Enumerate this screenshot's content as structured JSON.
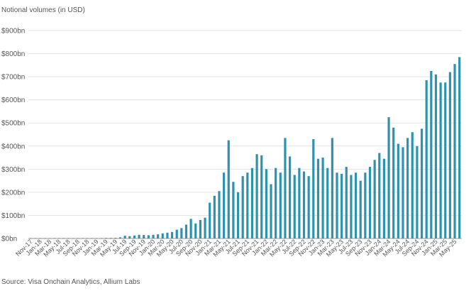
{
  "chart_data": {
    "type": "bar",
    "title": "",
    "ylabel": "Notional volumes (in USD)",
    "xlabel": "",
    "source": "Source: Visa Onchain Analytics, Allium Labs",
    "ylim": [
      0,
      900
    ],
    "yticks": [
      0,
      100,
      200,
      300,
      400,
      500,
      600,
      700,
      800,
      900
    ],
    "ytick_labels": [
      "$0bn",
      "$100bn",
      "$200bn",
      "$300bn",
      "$400bn",
      "$500bn",
      "$600bn",
      "$700bn",
      "$800bn",
      "$900bn"
    ],
    "categories": [
      "Nov-17",
      "Dec-17",
      "Jan-18",
      "Feb-18",
      "Mar-18",
      "Apr-18",
      "May-18",
      "Jun-18",
      "Jul-18",
      "Aug-18",
      "Sep-18",
      "Oct-18",
      "Nov-18",
      "Dec-18",
      "Jan-19",
      "Feb-19",
      "Mar-19",
      "Apr-19",
      "May-19",
      "Jun-19",
      "Jul-19",
      "Aug-19",
      "Sep-19",
      "Oct-19",
      "Nov-19",
      "Dec-19",
      "Jan-20",
      "Feb-20",
      "Mar-20",
      "Apr-20",
      "May-20",
      "Jun-20",
      "Jul-20",
      "Aug-20",
      "Sep-20",
      "Oct-20",
      "Nov-20",
      "Dec-20",
      "Jan-21",
      "Feb-21",
      "Mar-21",
      "Apr-21",
      "May-21",
      "Jun-21",
      "Jul-21",
      "Aug-21",
      "Sep-21",
      "Oct-21",
      "Nov-21",
      "Dec-21",
      "Jan-22",
      "Feb-22",
      "Mar-22",
      "Apr-22",
      "May-22",
      "Jun-22",
      "Jul-22",
      "Aug-22",
      "Sep-22",
      "Oct-22",
      "Nov-22",
      "Dec-22",
      "Jan-23",
      "Feb-23",
      "Mar-23",
      "Apr-23",
      "May-23",
      "Jun-23",
      "Jul-23",
      "Aug-23",
      "Sep-23",
      "Oct-23",
      "Nov-23",
      "Dec-23",
      "Jan-24",
      "Feb-24",
      "Mar-24",
      "Apr-24",
      "May-24",
      "Jun-24",
      "Jul-24",
      "Aug-24",
      "Sep-24",
      "Oct-24",
      "Nov-24",
      "Dec-24",
      "Jan-25",
      "Feb-25",
      "Mar-25",
      "Apr-25",
      "May-25",
      "Jun-25"
    ],
    "tick_labels": [
      "Nov-17",
      "Jan-18",
      "Mar-18",
      "May-18",
      "Jul-18",
      "Sep-18",
      "Nov-18",
      "Jan-19",
      "Mar-19",
      "May-19",
      "Jul-19",
      "Sep-19",
      "Nov-19",
      "Jan-20",
      "Mar-20",
      "May-20",
      "Jul-20",
      "Sep-20",
      "Nov-20",
      "Jan-21",
      "Mar-21",
      "May-21",
      "Jul-21",
      "Sep-21",
      "Nov-21",
      "Jan-22",
      "Mar-22",
      "May-22",
      "Jul-22",
      "Sep-22",
      "Nov-22",
      "Jan-23",
      "Mar-23",
      "May-23",
      "Jul-23",
      "Sep-23",
      "Nov-23",
      "Jan-24",
      "Mar-24",
      "May-24",
      "Jul-24",
      "Sep-24",
      "Nov-24",
      "Jan-25",
      "Mar-25",
      "May-25"
    ],
    "values": [
      0,
      0,
      0,
      0,
      0,
      0,
      0,
      0,
      0,
      0,
      0,
      0,
      0,
      0,
      0,
      0,
      1,
      2,
      3,
      5,
      12,
      10,
      13,
      16,
      15,
      14,
      16,
      18,
      22,
      25,
      28,
      38,
      45,
      60,
      85,
      65,
      80,
      90,
      155,
      185,
      205,
      285,
      425,
      245,
      200,
      270,
      285,
      305,
      365,
      360,
      300,
      235,
      305,
      285,
      435,
      355,
      275,
      305,
      290,
      270,
      430,
      345,
      350,
      305,
      435,
      285,
      280,
      310,
      275,
      285,
      250,
      285,
      310,
      340,
      370,
      345,
      525,
      480,
      410,
      395,
      435,
      460,
      400,
      475,
      685,
      725,
      710,
      675,
      675,
      720,
      755,
      785
    ],
    "bar_color": "#2b93ad"
  }
}
